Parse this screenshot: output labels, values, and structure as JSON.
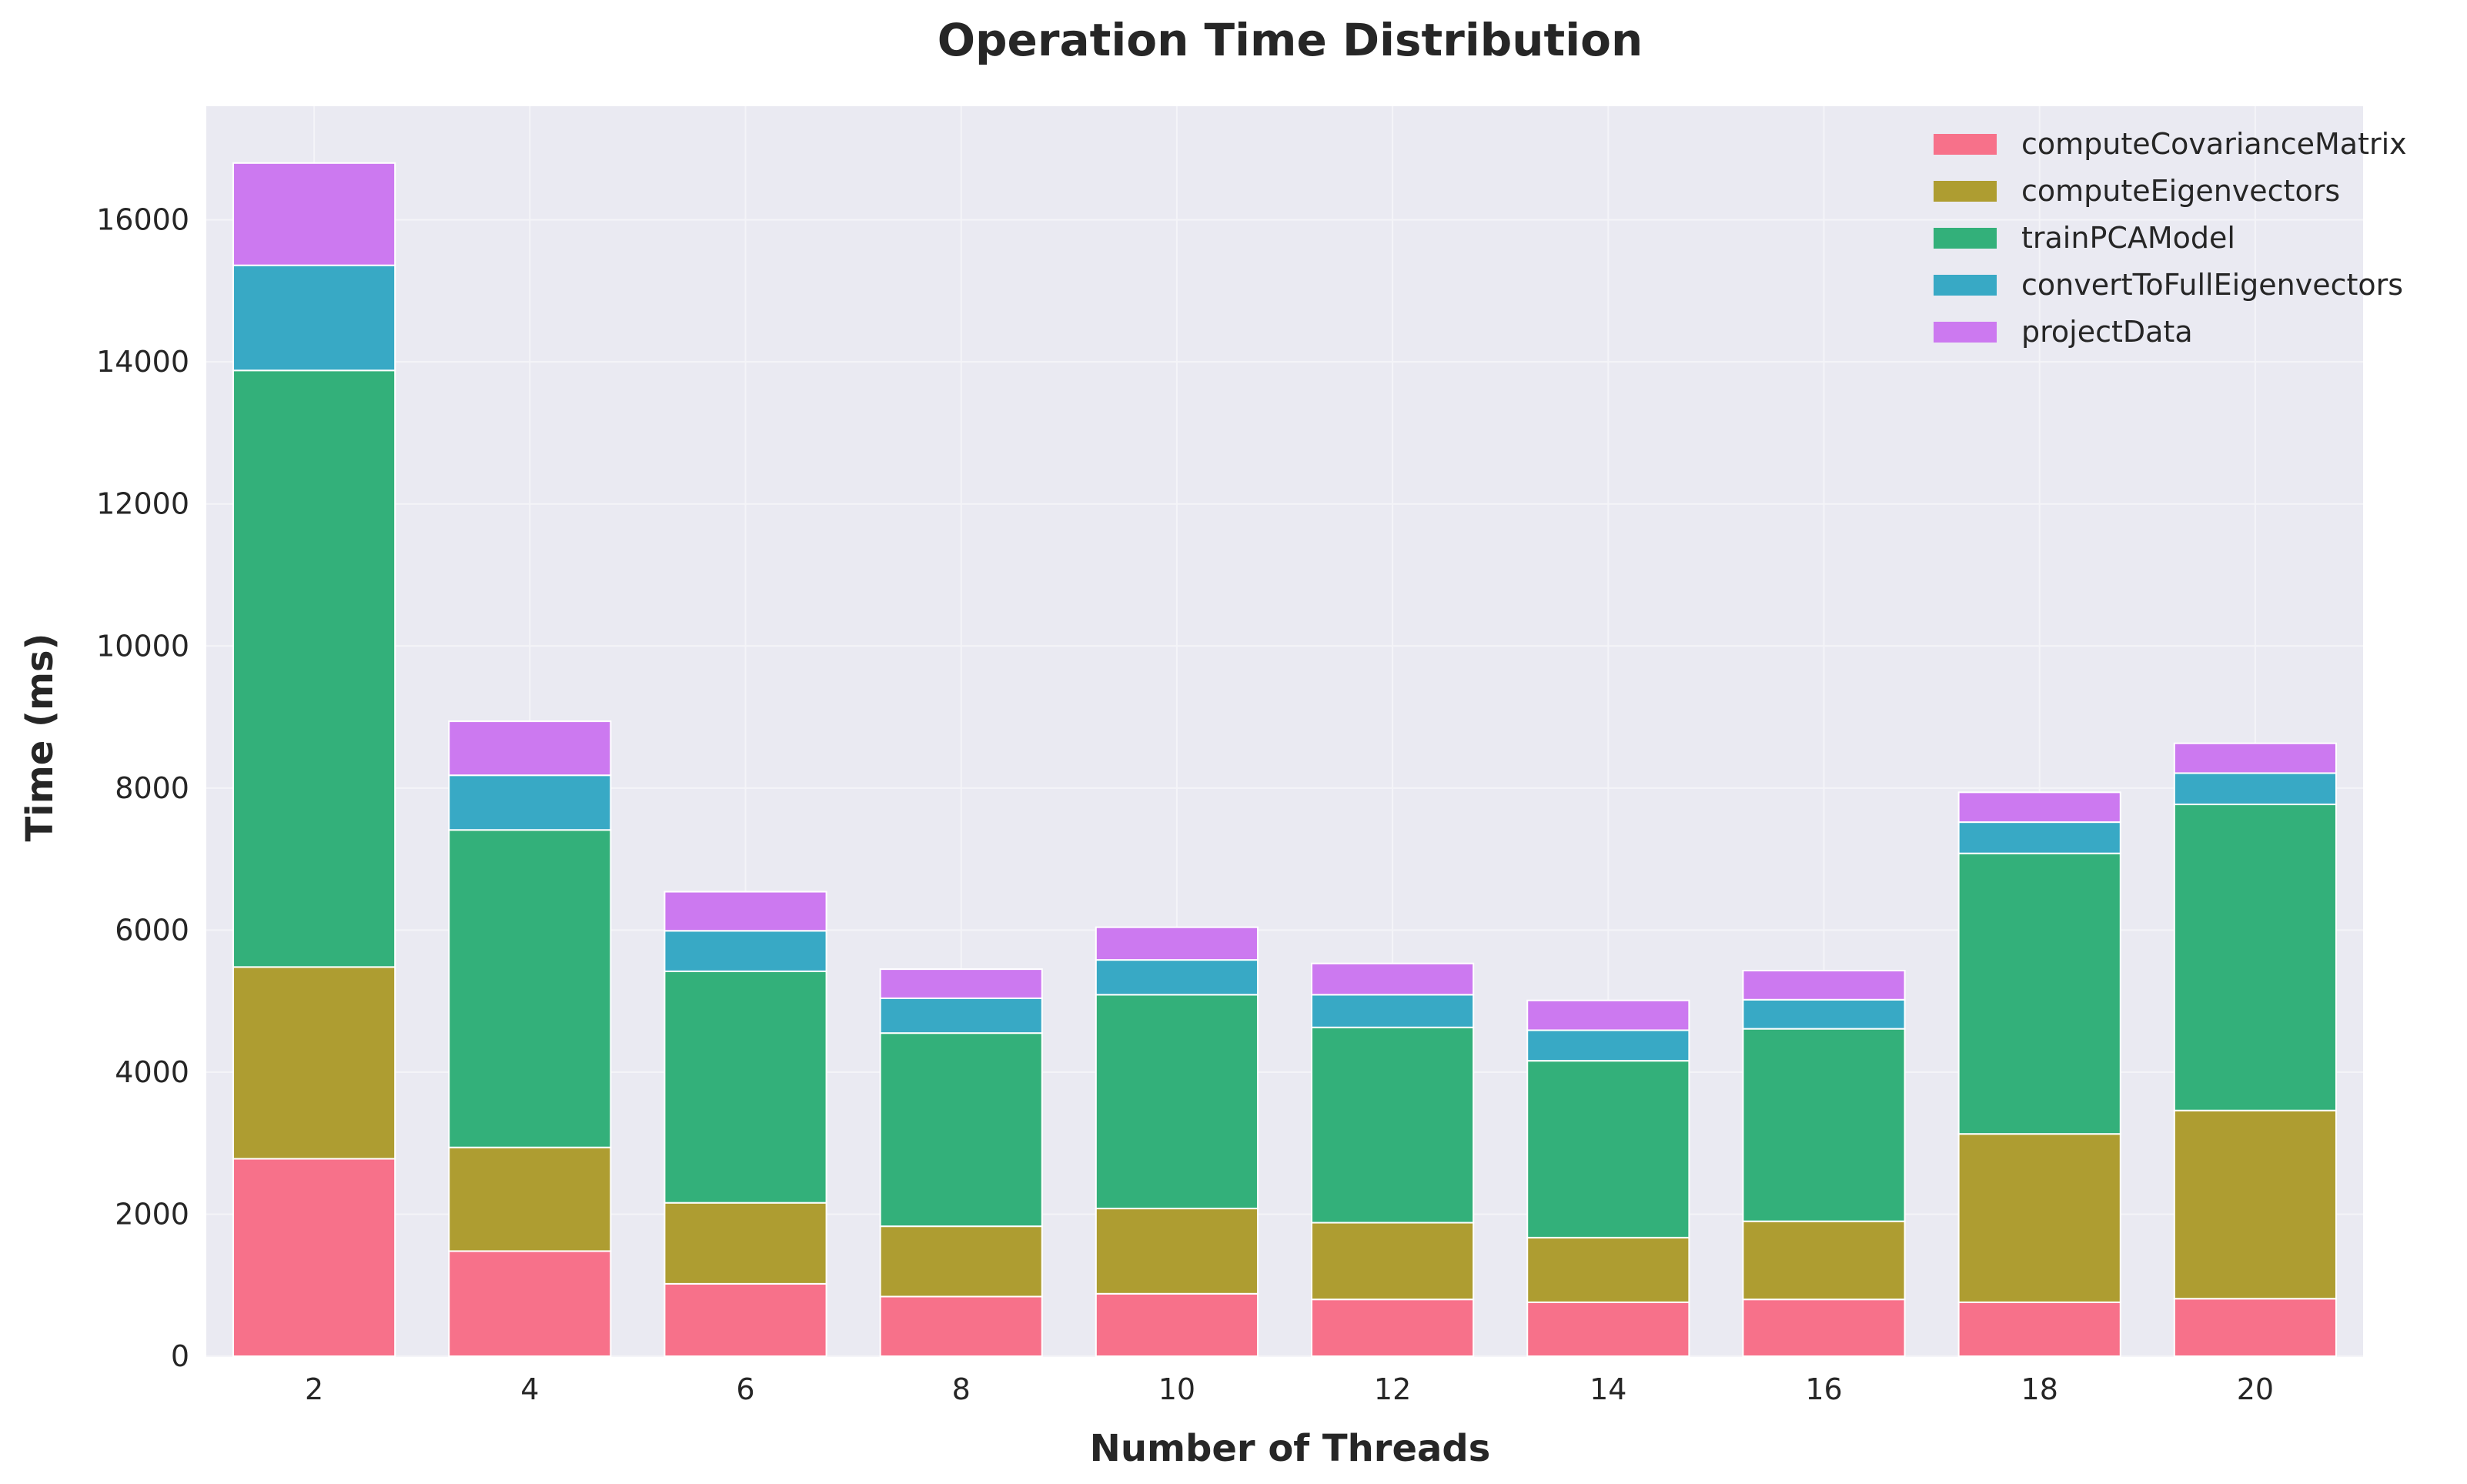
{
  "chart_data": {
    "type": "bar",
    "stacked": true,
    "title": "Operation Time Distribution",
    "xlabel": "Number of Threads",
    "ylabel": "Time (ms)",
    "categories": [
      "2",
      "4",
      "6",
      "8",
      "10",
      "12",
      "14",
      "16",
      "18",
      "20"
    ],
    "ylim": [
      0,
      17600
    ],
    "yticks": [
      0,
      2000,
      4000,
      6000,
      8000,
      10000,
      12000,
      14000,
      16000
    ],
    "grid": true,
    "legend_position": "top-right",
    "series": [
      {
        "name": "computeCovarianceMatrix",
        "color": "#f7718a",
        "values": [
          2780,
          1480,
          1020,
          840,
          880,
          800,
          760,
          800,
          760,
          810
        ]
      },
      {
        "name": "computeEigenvectors",
        "color": "#ae9d31",
        "values": [
          2700,
          1460,
          1140,
          990,
          1200,
          1080,
          910,
          1100,
          2370,
          2650
        ]
      },
      {
        "name": "trainPCAModel",
        "color": "#33b07a",
        "values": [
          8400,
          4470,
          3260,
          2720,
          3010,
          2750,
          2490,
          2710,
          3950,
          4310
        ]
      },
      {
        "name": "convertToFullEigenvectors",
        "color": "#38a9c5",
        "values": [
          1480,
          770,
          570,
          490,
          490,
          460,
          430,
          410,
          440,
          440
        ]
      },
      {
        "name": "projectData",
        "color": "#cc79f0",
        "values": [
          1440,
          760,
          550,
          410,
          460,
          440,
          420,
          410,
          420,
          420
        ]
      }
    ]
  }
}
